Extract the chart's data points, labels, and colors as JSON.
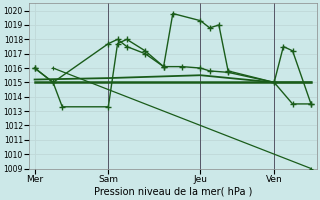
{
  "background_color": "#cce8e8",
  "grid_color": "#b8d8d8",
  "line_color": "#1a5c1a",
  "title": "Pression niveau de la mer( hPa )",
  "ylim": [
    1009,
    1020.5
  ],
  "yticks": [
    1009,
    1010,
    1011,
    1012,
    1013,
    1014,
    1015,
    1016,
    1017,
    1018,
    1019,
    1020
  ],
  "xtick_labels": [
    "Mer",
    "Sam",
    "Jeu",
    "Ven"
  ],
  "xtick_positions": [
    0,
    4,
    9,
    13
  ],
  "vline_positions": [
    4,
    9,
    13
  ],
  "line_A": {
    "x": [
      0,
      1,
      4,
      4.5,
      5,
      6,
      7,
      7.5,
      9,
      9.5,
      10,
      10.5,
      13,
      13.5,
      14,
      15
    ],
    "y": [
      1016,
      1015,
      1017.7,
      1018,
      1017.5,
      1017,
      1016.1,
      1019.8,
      1019.3,
      1018.8,
      1019,
      1015.8,
      1015,
      1017.5,
      1017.2,
      1013.5
    ]
  },
  "line_B": {
    "x": [
      0,
      1,
      1.5,
      4,
      4.5,
      5,
      6,
      7,
      8,
      9,
      9.5,
      10.5,
      13,
      14,
      15
    ],
    "y": [
      1016,
      1015,
      1013.3,
      1013.3,
      1017.7,
      1018.0,
      1017.2,
      1016.1,
      1016.1,
      1016.0,
      1015.8,
      1015.7,
      1015.0,
      1013.5,
      1013.5
    ]
  },
  "line_flat1": {
    "x": [
      0,
      4,
      9,
      13,
      15
    ],
    "y": [
      1015.2,
      1015.3,
      1015.5,
      1015.0,
      1015.0
    ]
  },
  "line_flat2": {
    "x": [
      0,
      9,
      13,
      15
    ],
    "y": [
      1015,
      1015,
      1015,
      1015
    ]
  },
  "line_diagonal": {
    "x": [
      1,
      15
    ],
    "y": [
      1016.0,
      1009.0
    ]
  }
}
